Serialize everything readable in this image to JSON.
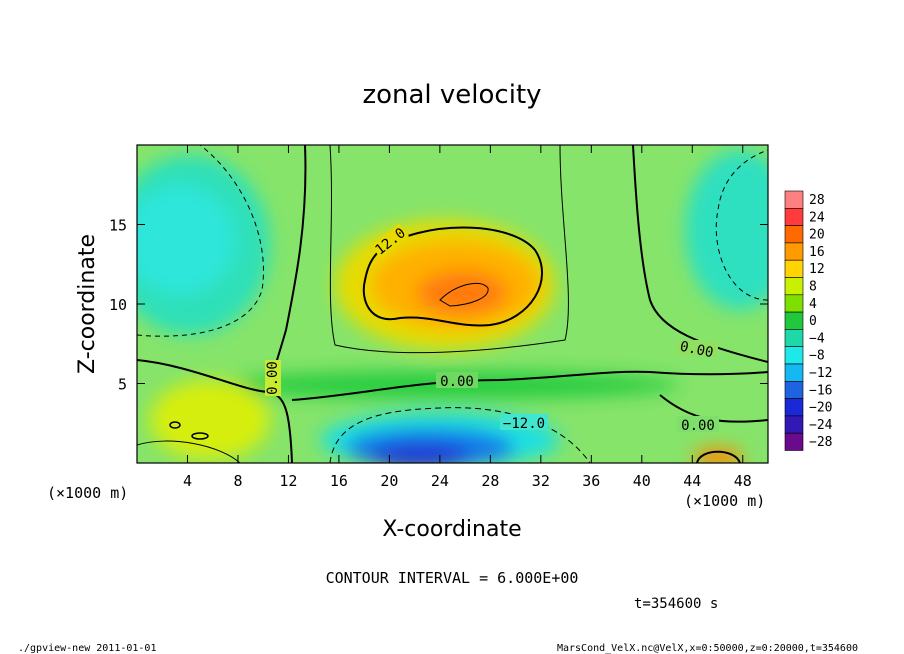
{
  "chart_data": {
    "type": "heatmap",
    "title": "zonal velocity",
    "xlabel": "X-coordinate",
    "ylabel": "Z-coordinate",
    "x_unit": "(×1000 m)",
    "x_unit_right": "(×1000 m)",
    "xlim": [
      0,
      50
    ],
    "ylim": [
      0,
      20
    ],
    "x_ticks": [
      4,
      8,
      12,
      16,
      20,
      24,
      28,
      32,
      36,
      40,
      44,
      48
    ],
    "x_tick_labels": [
      "4",
      "8",
      "12",
      "16",
      "20",
      "24",
      "28",
      "32",
      "36",
      "40",
      "44",
      "48"
    ],
    "y_ticks": [
      5,
      10,
      15
    ],
    "y_tick_labels": [
      "5",
      "10",
      "15"
    ],
    "contour_interval_text": "CONTOUR INTERVAL = 6.000E+00",
    "time_text": "t=354600 s",
    "colorbar": {
      "levels": [
        28,
        24,
        20,
        16,
        12,
        8,
        4,
        0,
        -4,
        -8,
        -12,
        -16,
        -20,
        -24,
        -28
      ],
      "labels": [
        "28",
        "24",
        "20",
        "16",
        "12",
        "8",
        "4",
        "0",
        "−4",
        "−8",
        "−12",
        "−16",
        "−20",
        "−24",
        "−28"
      ],
      "colors": [
        "#ff8080",
        "#ff3b3b",
        "#ff6a00",
        "#ff9a00",
        "#ffd400",
        "#c8f000",
        "#7ee000",
        "#20c83c",
        "#1ed8a8",
        "#1ee8e8",
        "#15b8f0",
        "#1e64e0",
        "#1a28d8",
        "#3218b4",
        "#6a0a8c"
      ]
    },
    "features": [
      {
        "kind": "positive_peak",
        "x": 25,
        "z": 10.5,
        "value": 20
      },
      {
        "kind": "negative_trough",
        "x": 23,
        "z": 1,
        "value": -20
      },
      {
        "kind": "negative_region",
        "x": 4,
        "z": 13,
        "value": -8
      },
      {
        "kind": "negative_region",
        "x": 48,
        "z": 14,
        "value": -8
      },
      {
        "kind": "positive_peak",
        "x": 46,
        "z": 0.5,
        "value": 16
      }
    ],
    "contour_labels": [
      "12.0",
      "0.00",
      "0.00",
      "−12.0",
      "0.00",
      "0.00"
    ],
    "grid": false
  },
  "footer": {
    "left": "./gpview-new   2011-01-01",
    "right": "MarsCond_VelX.nc@VelX,x=0:50000,z=0:20000,t=354600"
  }
}
